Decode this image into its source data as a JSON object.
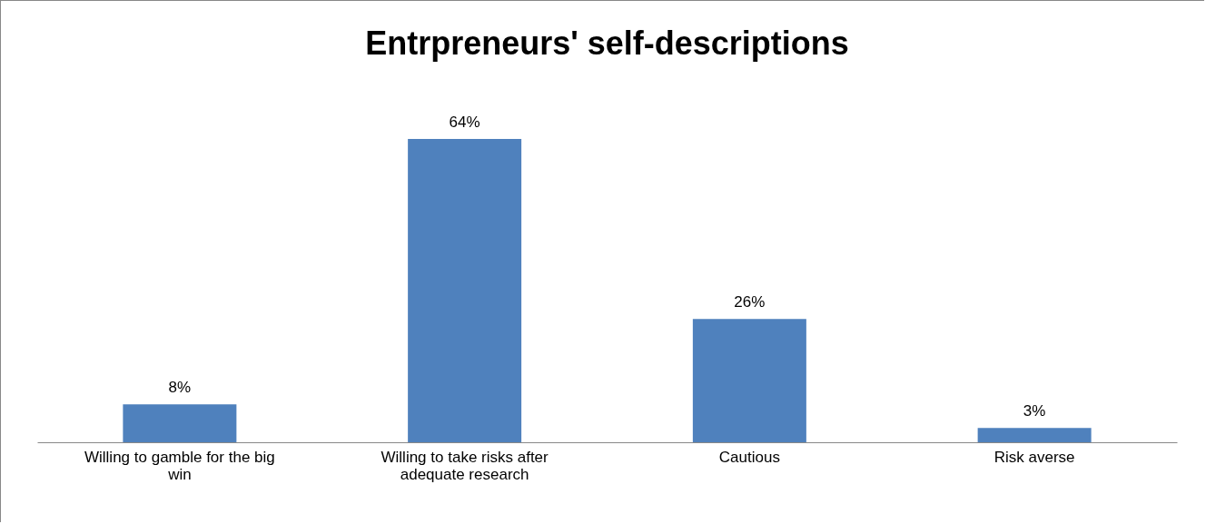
{
  "chart_data": {
    "type": "bar",
    "title": "Entrpreneurs' self-descriptions",
    "categories": [
      "Willing to gamble for the big win",
      "Willing to take risks after adequate research",
      "Cautious",
      "Risk averse"
    ],
    "values": [
      8,
      64,
      26,
      3
    ],
    "value_labels": [
      "8%",
      "64%",
      "26%",
      "3%"
    ],
    "color": "#4f81bd",
    "grid": false
  }
}
